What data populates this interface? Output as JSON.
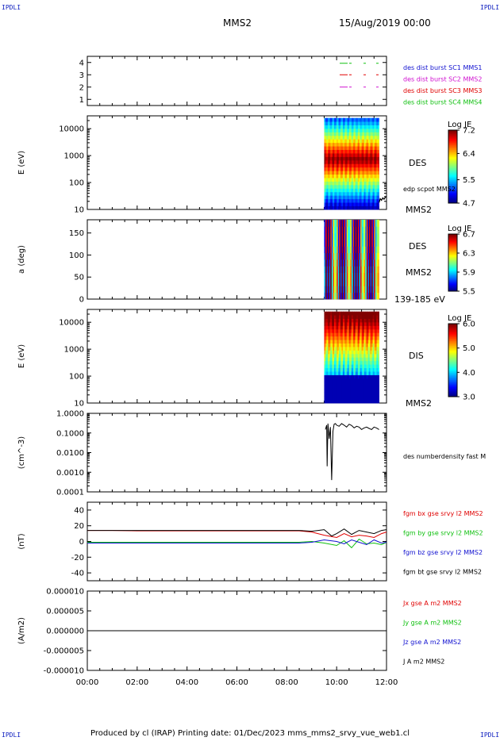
{
  "corner_text": "IPDLI",
  "header": {
    "spacecraft": "MMS2",
    "date": "15/Aug/2019 00:00"
  },
  "footer": "Produced by cl (IRAP)   Printing date: 01/Dec/2023   mms_mms2_srvy_vue_web1.cl",
  "x_axis": {
    "ticks": [
      "00:00",
      "02:00",
      "04:00",
      "06:00",
      "08:00",
      "10:00",
      "12:00"
    ],
    "range_hours": [
      0,
      12
    ]
  },
  "chart_data": [
    {
      "type": "line",
      "panel": "spacecraft-legend",
      "ylim": [
        0.5,
        4.5
      ],
      "yticks": [
        "1",
        "2",
        "3",
        "4"
      ],
      "series": [
        {
          "name": "des dist burst SC1 MMS1",
          "color": "#1010d0"
        },
        {
          "name": "des dist burst SC2 MMS2",
          "color": "#d010d0"
        },
        {
          "name": "des dist burst SC3 MMS3",
          "color": "#e00000"
        },
        {
          "name": "des dist burst SC4 MMS4",
          "color": "#10c010"
        }
      ]
    },
    {
      "type": "heatmap",
      "panel": "des-energy",
      "ylabel": "E (eV)",
      "yscale": "log",
      "ylim": [
        10,
        30000
      ],
      "yticks": [
        "10",
        "100",
        "1000",
        "10000"
      ],
      "x_range_hours": [
        9.5,
        11.7
      ],
      "right_labels": [
        "DES",
        "edp scpot MMS2",
        "MMS2"
      ],
      "colorbar": {
        "title": "Log JE",
        "ticks": [
          "7.2",
          "6.4",
          "5.5",
          "4.7"
        ],
        "range": [
          4.7,
          7.2
        ]
      },
      "overlay": {
        "name": "edp scpot MMS2",
        "x": [
          11.7,
          11.75,
          11.8,
          11.85,
          11.9,
          11.95,
          12.0
        ],
        "y": [
          18,
          25,
          22,
          27,
          24,
          28,
          30
        ]
      }
    },
    {
      "type": "heatmap",
      "panel": "des-pitch-angle",
      "ylabel": "a (deg)",
      "ylim": [
        0,
        180
      ],
      "yticks": [
        "0",
        "50",
        "100",
        "150"
      ],
      "x_range_hours": [
        9.5,
        11.7
      ],
      "right_labels": [
        "DES",
        "MMS2",
        "139-185 eV"
      ],
      "colorbar": {
        "title": "Log JE",
        "ticks": [
          "6.7",
          "6.3",
          "5.9",
          "5.5"
        ],
        "range": [
          5.5,
          6.7
        ]
      }
    },
    {
      "type": "heatmap",
      "panel": "dis-energy",
      "ylabel": "E (eV)",
      "yscale": "log",
      "ylim": [
        10,
        30000
      ],
      "yticks": [
        "10",
        "100",
        "1000",
        "10000"
      ],
      "x_range_hours": [
        9.5,
        11.7
      ],
      "right_labels": [
        "DIS",
        "MMS2"
      ],
      "colorbar": {
        "title": "Log JE",
        "ticks": [
          "6.0",
          "5.0",
          "4.0",
          "3.0"
        ],
        "range": [
          3.0,
          6.0
        ]
      }
    },
    {
      "type": "line",
      "panel": "density",
      "ylabel": "(cm^-3)",
      "yscale": "log",
      "ylim": [
        0.0001,
        1.0
      ],
      "yticks": [
        "0.0001",
        "0.0010",
        "0.0100",
        "0.1000",
        "1.0000"
      ],
      "series": [
        {
          "name": "des numberdensity fast M",
          "color": "#000000",
          "x": [
            9.55,
            9.6,
            9.62,
            9.65,
            9.7,
            9.75,
            9.8,
            9.85,
            9.9,
            9.95,
            10.0,
            10.1,
            10.2,
            10.3,
            10.4,
            10.5,
            10.6,
            10.7,
            10.8,
            10.9,
            11.0,
            11.1,
            11.2,
            11.3,
            11.4,
            11.5,
            11.6,
            11.7
          ],
          "y": [
            0.15,
            0.25,
            0.002,
            0.3,
            0.05,
            0.2,
            0.0004,
            0.12,
            0.28,
            0.3,
            0.25,
            0.22,
            0.3,
            0.25,
            0.2,
            0.28,
            0.24,
            0.18,
            0.22,
            0.2,
            0.15,
            0.18,
            0.2,
            0.17,
            0.15,
            0.2,
            0.18,
            0.15
          ]
        }
      ]
    },
    {
      "type": "line",
      "panel": "magnetic-field",
      "ylabel": "(nT)",
      "ylim": [
        -50,
        50
      ],
      "yticks": [
        "-40",
        "-20",
        "0",
        "20",
        "40"
      ],
      "series": [
        {
          "name": "fgm bx gse srvy l2 MMS2",
          "color": "#e00000",
          "x": [
            0,
            1,
            2,
            3,
            4,
            5,
            6,
            7,
            8,
            8.5,
            9,
            9.5,
            10,
            10.3,
            10.6,
            10.9,
            11.2,
            11.5,
            11.8,
            12
          ],
          "y": [
            14,
            14,
            13.5,
            13.5,
            13.5,
            13.5,
            13.5,
            13.5,
            13.5,
            13.5,
            12,
            8,
            5,
            10,
            6,
            8,
            7,
            5,
            10,
            12
          ]
        },
        {
          "name": "fgm by gse srvy l2 MMS2",
          "color": "#10c010",
          "x": [
            0,
            1,
            2,
            3,
            4,
            5,
            6,
            7,
            8,
            8.5,
            9,
            9.5,
            10,
            10.3,
            10.6,
            10.9,
            11.2,
            11.5,
            11.8,
            12
          ],
          "y": [
            -1,
            -1,
            -1,
            -1,
            -1,
            -1,
            -1,
            -1,
            -1,
            -1,
            0,
            -2,
            -5,
            1,
            -8,
            3,
            -3,
            -2,
            -4,
            -1
          ]
        },
        {
          "name": "fgm bz gse srvy l2 MMS2",
          "color": "#1010d0",
          "x": [
            0,
            1,
            2,
            3,
            4,
            5,
            6,
            7,
            8,
            8.5,
            9,
            9.5,
            10,
            10.3,
            10.6,
            10.9,
            11.2,
            11.5,
            11.8,
            12
          ],
          "y": [
            -2,
            -2,
            -2,
            -2,
            -2,
            -2,
            -2,
            -2,
            -2,
            -2,
            -1,
            2,
            0,
            -3,
            2,
            -1,
            -4,
            2,
            -2,
            -1
          ]
        },
        {
          "name": "fgm bt gse srvy l2 MMS2",
          "color": "#000000",
          "x": [
            0,
            1,
            2,
            3,
            4,
            5,
            6,
            7,
            8,
            8.5,
            9,
            9.5,
            9.8,
            10,
            10.3,
            10.6,
            10.9,
            11.2,
            11.5,
            11.8,
            12
          ],
          "y": [
            14,
            14,
            14,
            14,
            14,
            14,
            14,
            14,
            14,
            14,
            13,
            15,
            7,
            10,
            16,
            9,
            14,
            12,
            10,
            14,
            15
          ]
        }
      ]
    },
    {
      "type": "line",
      "panel": "current-density",
      "ylabel": "(A/m2)",
      "ylim": [
        -1e-05,
        1e-05
      ],
      "yticks": [
        "-0.000010",
        "-0.000005",
        "0.000000",
        "0.000005",
        "0.000010"
      ],
      "series": [
        {
          "name": "Jx gse A m2 MMS2",
          "color": "#e00000"
        },
        {
          "name": "Jy gse A m2 MMS2",
          "color": "#10c010"
        },
        {
          "name": "Jz gse A m2 MMS2",
          "color": "#1010d0"
        },
        {
          "name": "J A m2 MMS2",
          "color": "#000000",
          "x": [
            0,
            12
          ],
          "y": [
            0,
            0
          ]
        }
      ]
    }
  ]
}
